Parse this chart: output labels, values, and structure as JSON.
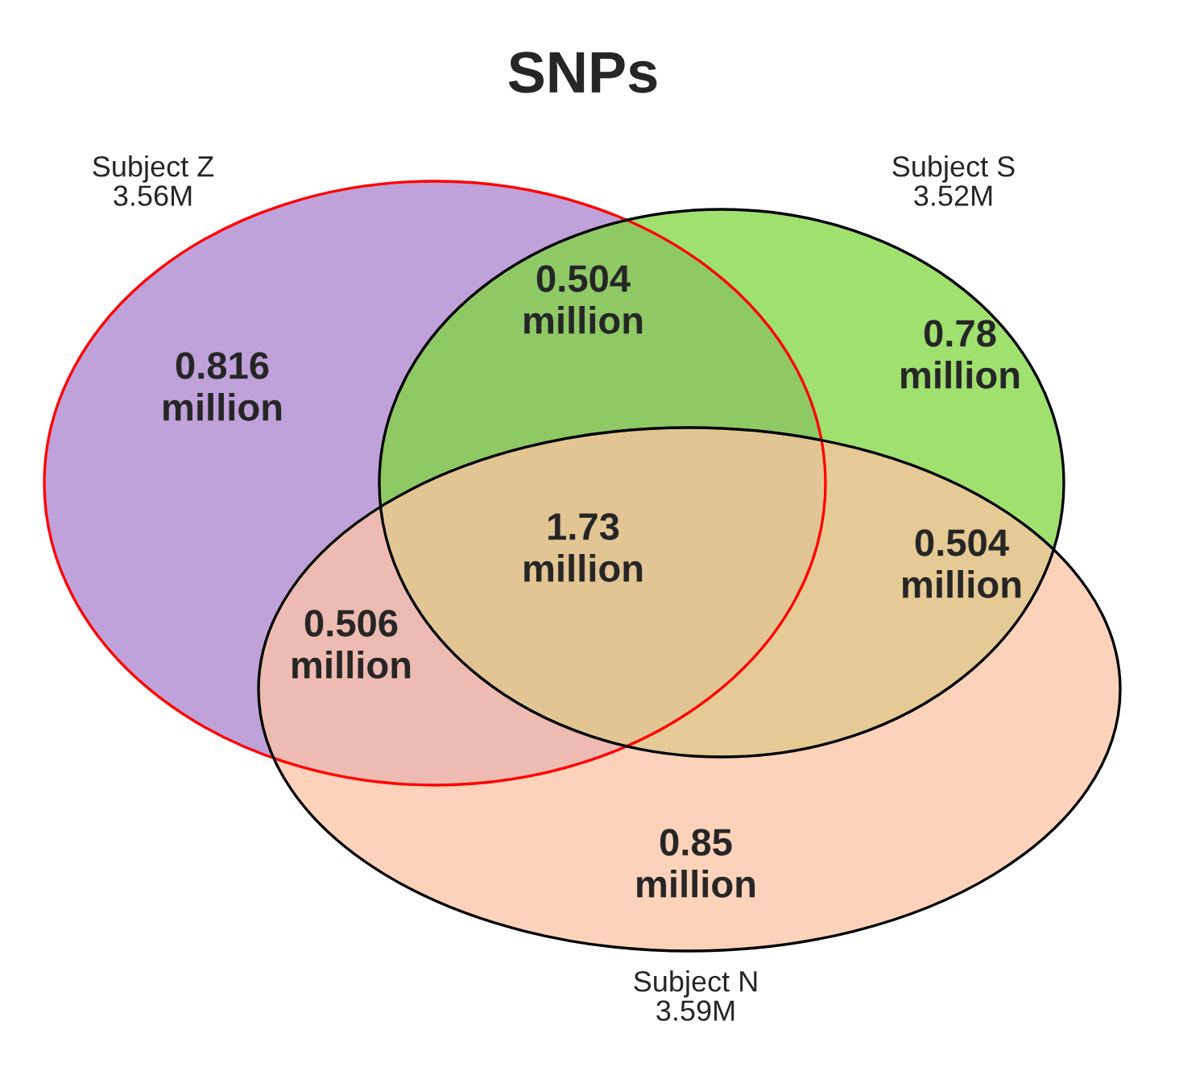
{
  "chart_data": {
    "type": "other",
    "title": "SNPs",
    "categories": [
      "million",
      "million",
      "million",
      "million",
      "million",
      "million",
      "million"
    ],
    "values": [
      0.816,
      0.504,
      0.78,
      1.73,
      0.506,
      0.504,
      0.85
    ],
    "data_labels": true,
    "annotations": [
      "Subject Z\n3.56M",
      "Subject S\n3.52M",
      "Subject N\n3.59M"
    ]
  }
}
